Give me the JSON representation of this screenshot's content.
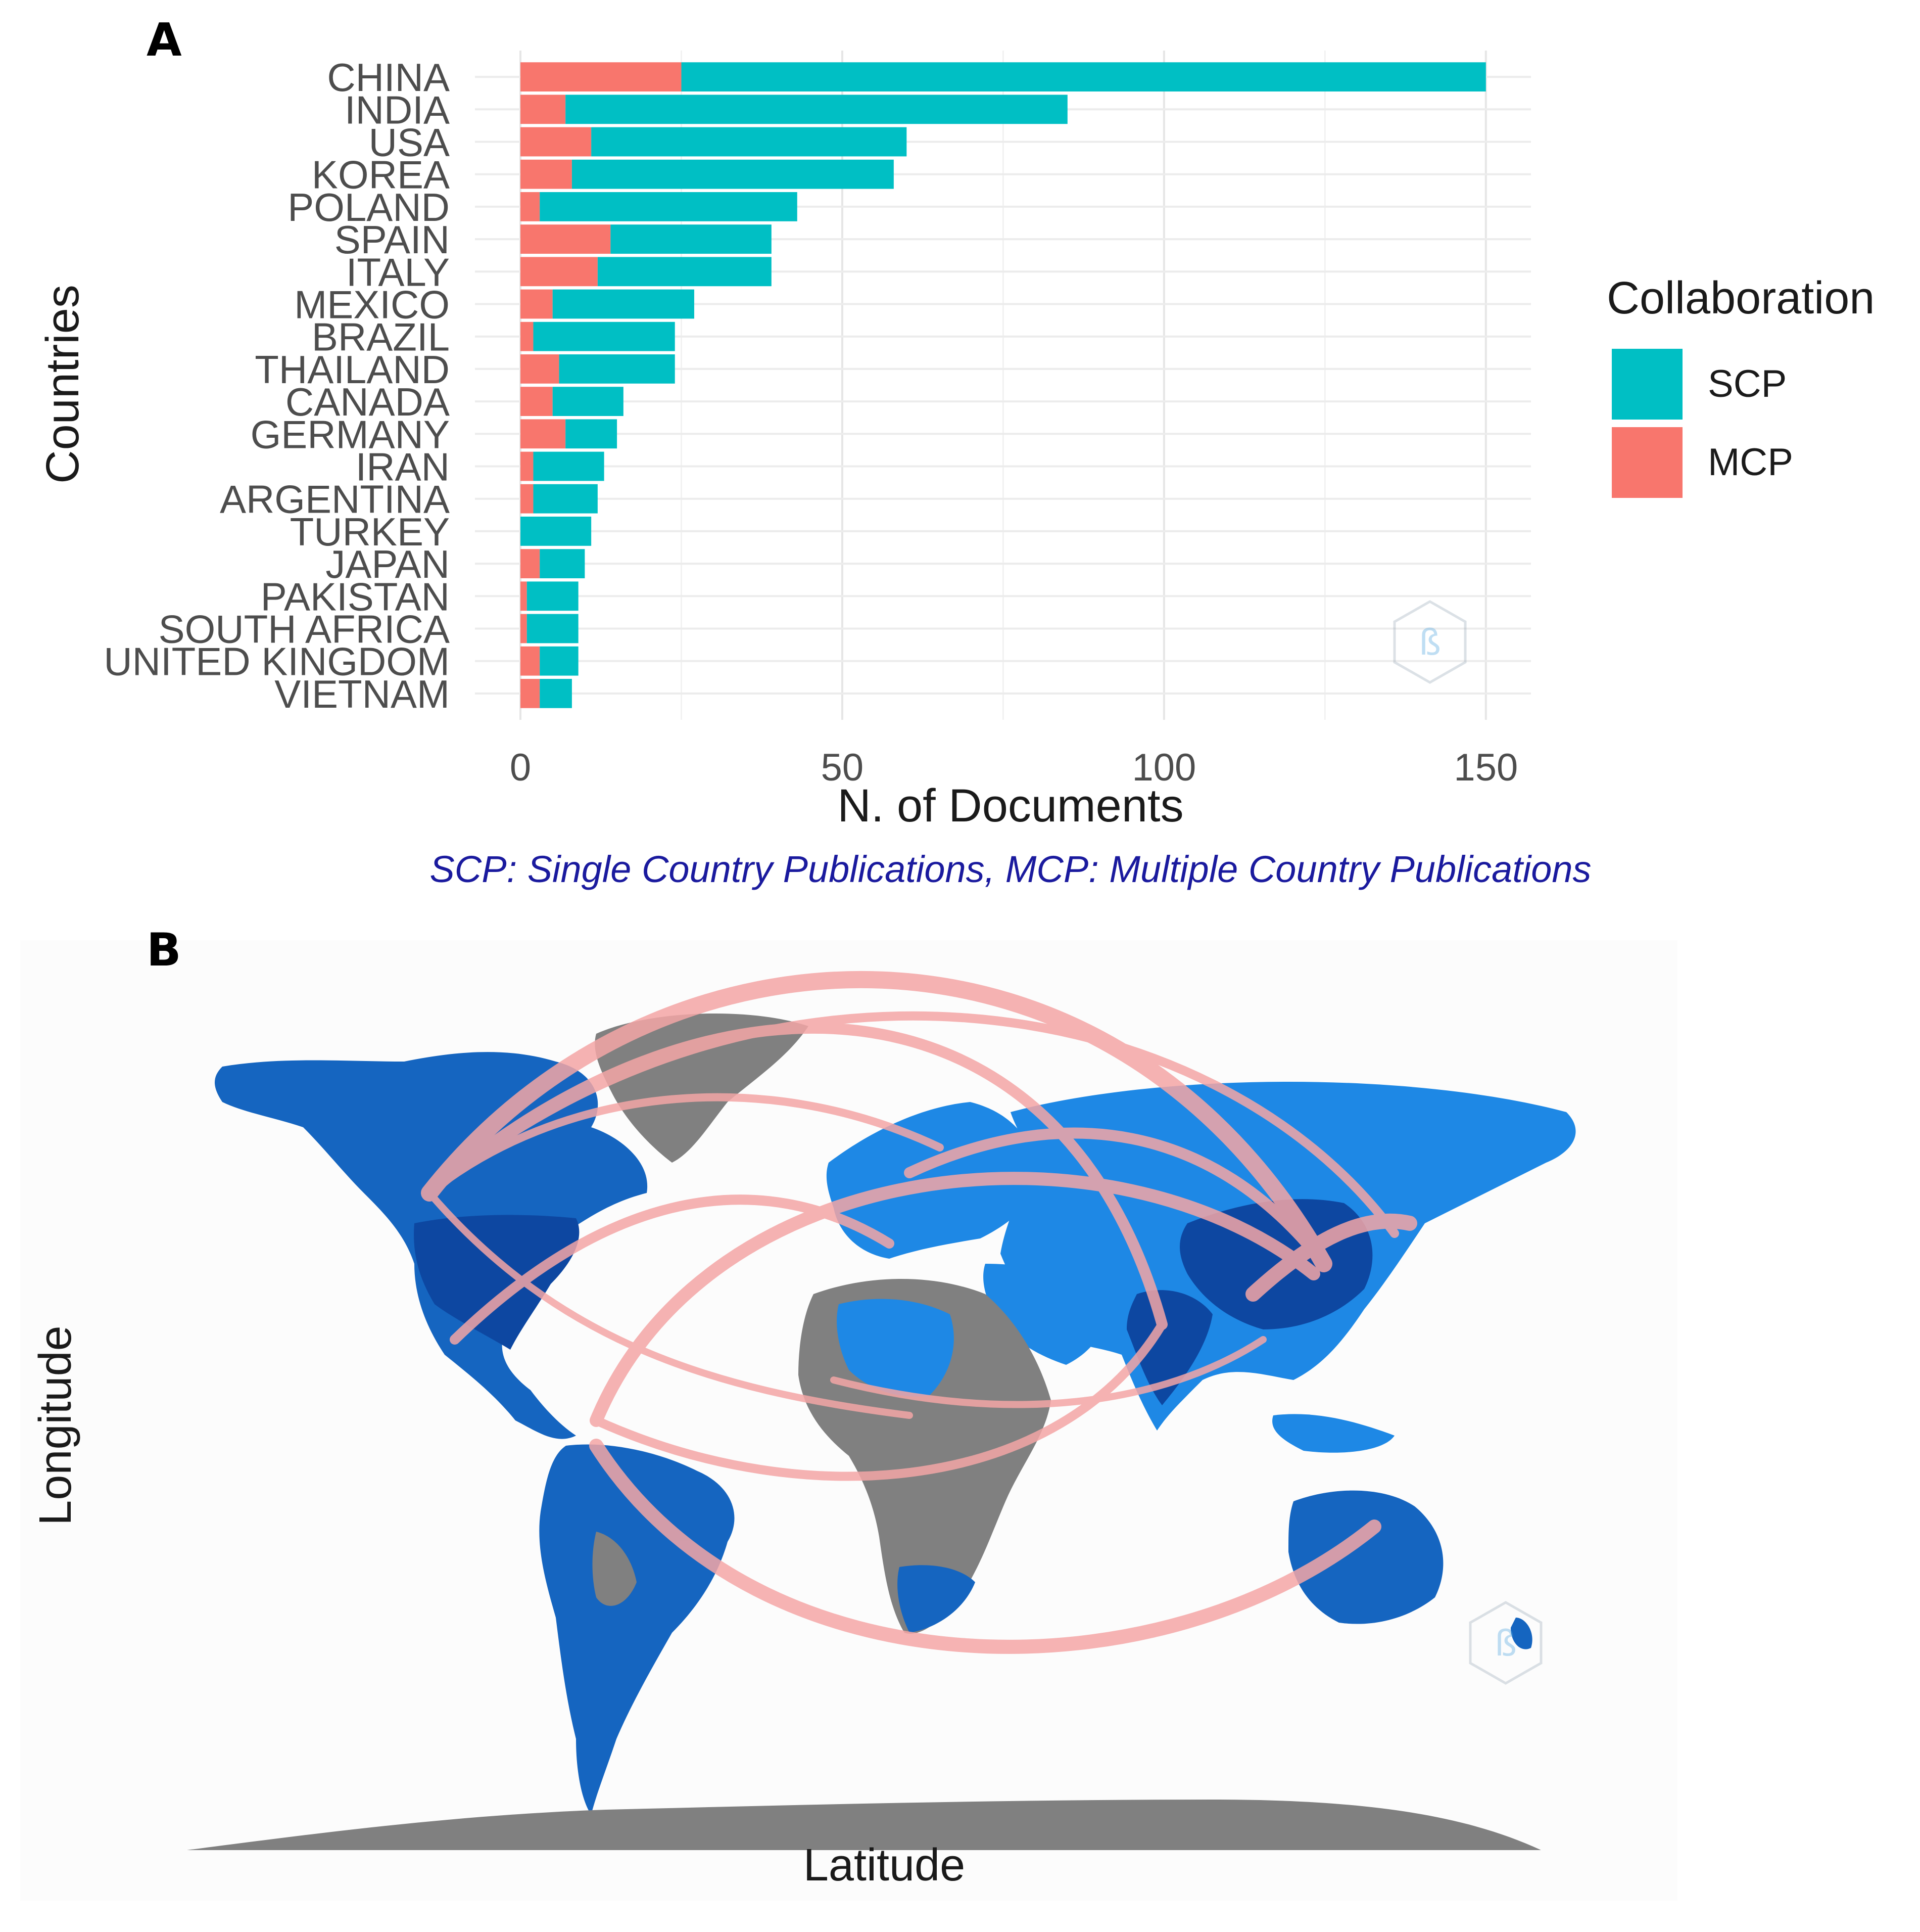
{
  "chart_data": [
    {
      "panel": "A",
      "type": "bar",
      "orientation": "horizontal",
      "stacked": true,
      "categories": [
        "CHINA",
        "INDIA",
        "USA",
        "KOREA",
        "POLAND",
        "SPAIN",
        "ITALY",
        "MEXICO",
        "BRAZIL",
        "THAILAND",
        "CANADA",
        "GERMANY",
        "IRAN",
        "ARGENTINA",
        "TURKEY",
        "JAPAN",
        "PAKISTAN",
        "SOUTH AFRICA",
        "UNITED KINGDOM",
        "VIETNAM"
      ],
      "series": [
        {
          "name": "MCP",
          "color": "#f8766d",
          "values": [
            25,
            7,
            11,
            8,
            3,
            14,
            12,
            5,
            2,
            6,
            5,
            7,
            2,
            2,
            0,
            3,
            1,
            1,
            3,
            3
          ]
        },
        {
          "name": "SCP",
          "color": "#00bfc4",
          "values": [
            125,
            78,
            49,
            50,
            40,
            25,
            27,
            22,
            22,
            18,
            11,
            8,
            11,
            10,
            11,
            7,
            8,
            8,
            6,
            5
          ]
        }
      ],
      "xticks": [
        "0",
        "50",
        "100",
        "150"
      ],
      "xlim": [
        0,
        157
      ],
      "xlabel": "N. of Documents",
      "ylabel": "Countries",
      "legend": {
        "title": "Collaboration",
        "entries": [
          "SCP",
          "MCP"
        ],
        "placement": "right"
      },
      "caption": "SCP: Single Country Publications, MCP: Multiple Country Publications"
    },
    {
      "panel": "B",
      "type": "map",
      "title": "",
      "xlabel": "Latitude",
      "ylabel": "Longitude",
      "colors": {
        "ocean": "#ffffff",
        "no_data": "#808080",
        "low": "#1e88e5",
        "mid": "#1565c0",
        "high": "#0d47a1",
        "link": "#f4a6a6"
      }
    }
  ],
  "panel_labels": [
    "A",
    "B"
  ]
}
